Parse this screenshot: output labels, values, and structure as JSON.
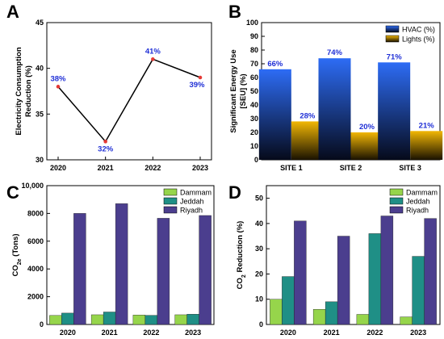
{
  "chart_data": [
    {
      "panel": "A",
      "type": "line",
      "x": [
        "2020",
        "2021",
        "2022",
        "2023"
      ],
      "values": [
        38,
        32,
        41,
        39
      ],
      "data_labels": [
        "38%",
        "32%",
        "41%",
        "39%"
      ],
      "ylabel_line1": "Electricity Consumption",
      "ylabel_line2": "Reduction (%)",
      "ylim": [
        30,
        45
      ],
      "yticks": [
        30,
        35,
        40,
        45
      ],
      "colors": {
        "line": "#000000",
        "marker": "#e53935",
        "label": "#1f2fd6"
      }
    },
    {
      "panel": "B",
      "type": "bar",
      "categories": [
        "SITE 1",
        "SITE 2",
        "SITE 3"
      ],
      "series": [
        {
          "name": "HVAC (%)",
          "values": [
            66,
            74,
            71
          ],
          "labels": [
            "66%",
            "74%",
            "71%"
          ],
          "color_top": "#2d6cf5",
          "color_bottom": "#060a1a"
        },
        {
          "name": "Lights (%)",
          "values": [
            28,
            20,
            21
          ],
          "labels": [
            "28%",
            "20%",
            "21%"
          ],
          "color_top": "#f2b705",
          "color_bottom": "#1a1200"
        }
      ],
      "ylabel_line1": "Significant Energy Use",
      "ylabel_line2": "[SEU] (%)",
      "ylim": [
        0,
        100
      ],
      "yticks": [
        0,
        10,
        20,
        30,
        40,
        50,
        60,
        70,
        80,
        90,
        100
      ],
      "legend": "top-right"
    },
    {
      "panel": "C",
      "type": "bar",
      "categories": [
        "2020",
        "2021",
        "2022",
        "2023"
      ],
      "series": [
        {
          "name": "Dammam",
          "values": [
            650,
            700,
            680,
            700
          ],
          "color": "#96d54b"
        },
        {
          "name": "Jeddah",
          "values": [
            820,
            900,
            660,
            740
          ],
          "color": "#1f8f86"
        },
        {
          "name": "Riyadh",
          "values": [
            8000,
            8700,
            7650,
            7850
          ],
          "color": "#4b3e8e"
        }
      ],
      "ylabel_main": "CO",
      "ylabel_sub": "2e",
      "ylabel_tail": " (Tons)",
      "ylim": [
        0,
        10000
      ],
      "yticks": [
        0,
        2000,
        4000,
        6000,
        8000,
        10000
      ],
      "ytick_labels": [
        "0",
        "2000",
        "4000",
        "6000",
        "8000",
        "10,000"
      ],
      "legend": "top-right"
    },
    {
      "panel": "D",
      "type": "bar",
      "categories": [
        "2020",
        "2021",
        "2022",
        "2023"
      ],
      "series": [
        {
          "name": "Dammam",
          "values": [
            10,
            6,
            4,
            3
          ],
          "color": "#96d54b"
        },
        {
          "name": "Jeddah",
          "values": [
            19,
            9,
            36,
            27
          ],
          "color": "#1f8f86"
        },
        {
          "name": "Riyadh",
          "values": [
            41,
            35,
            43,
            42
          ],
          "color": "#4b3e8e"
        }
      ],
      "ylabel_main": "CO",
      "ylabel_sub": "2",
      "ylabel_tail": " Reduction (%)",
      "ylim": [
        0,
        55
      ],
      "yticks": [
        0,
        10,
        20,
        30,
        40,
        50
      ],
      "legend": "top-right"
    }
  ]
}
